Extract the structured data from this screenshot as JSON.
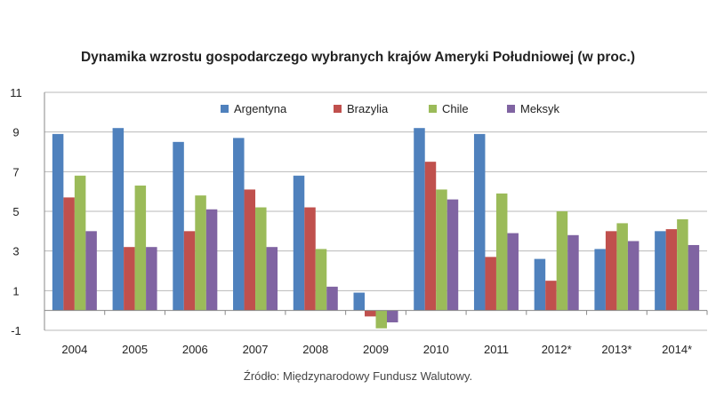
{
  "chart_data": {
    "type": "bar",
    "title": "Dynamika wzrostu gospodarczego wybranych krajów Ameryki Południowej (w proc.)",
    "source": "Źródło: Międzynarodowy Fundusz Walutowy.",
    "categories": [
      "2004",
      "2005",
      "2006",
      "2007",
      "2008",
      "2009",
      "2010",
      "2011",
      "2012*",
      "2013*",
      "2014*"
    ],
    "ylim": [
      -1,
      11
    ],
    "yticks": [
      -1,
      1,
      3,
      5,
      7,
      9,
      11
    ],
    "grid": true,
    "legend_position": "top",
    "series": [
      {
        "name": "Argentyna",
        "color": "#4f81bd",
        "values": [
          8.9,
          9.2,
          8.5,
          8.7,
          6.8,
          0.9,
          9.2,
          8.9,
          2.6,
          3.1,
          4.0
        ]
      },
      {
        "name": "Brazylia",
        "color": "#c0504d",
        "values": [
          5.7,
          3.2,
          4.0,
          6.1,
          5.2,
          -0.3,
          7.5,
          2.7,
          1.5,
          4.0,
          4.1
        ]
      },
      {
        "name": "Chile",
        "color": "#9bbb59",
        "values": [
          6.8,
          6.3,
          5.8,
          5.2,
          3.1,
          -0.9,
          6.1,
          5.9,
          5.0,
          4.4,
          4.6
        ]
      },
      {
        "name": "Meksyk",
        "color": "#8064a2",
        "values": [
          4.0,
          3.2,
          5.1,
          3.2,
          1.2,
          -0.6,
          5.6,
          3.9,
          3.8,
          3.5,
          3.3
        ]
      }
    ]
  }
}
